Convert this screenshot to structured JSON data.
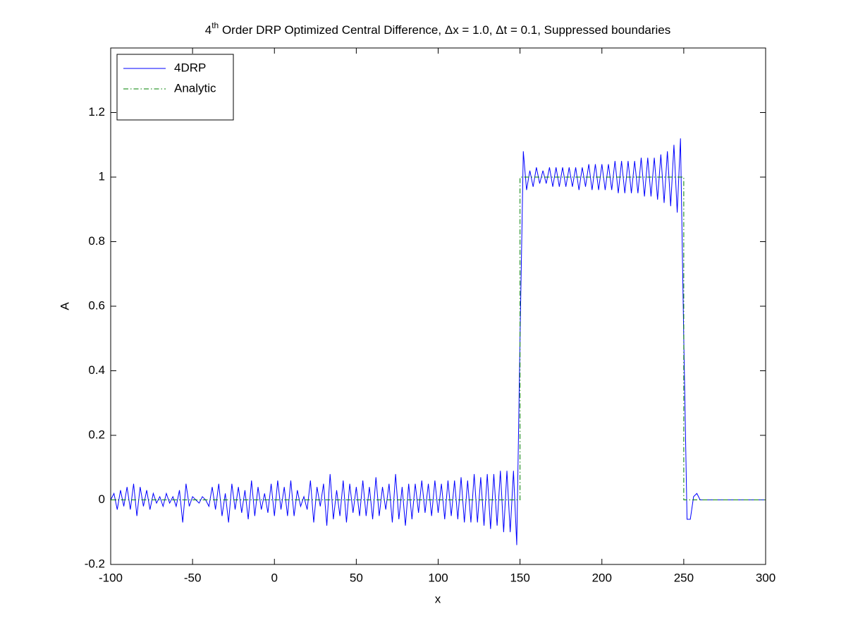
{
  "chart_data": {
    "type": "line",
    "title": [
      "4",
      "th",
      " Order DRP Optimized Central Difference, Δx = 1.0, Δt = 0.1, Suppressed boundaries"
    ],
    "xlabel": "x",
    "ylabel": "A",
    "xlim": [
      -100,
      300
    ],
    "xticks": [
      -100,
      -50,
      0,
      50,
      100,
      150,
      200,
      250,
      300
    ],
    "ylim": [
      -0.2,
      1.4
    ],
    "yticks": [
      -0.2,
      0,
      0.2,
      0.4,
      0.6,
      0.8,
      1,
      1.2
    ],
    "legend": "northwest",
    "series": [
      {
        "name": "4DRP",
        "color": "#0000ff",
        "style": "solid",
        "x": [
          -100,
          -98,
          -96,
          -94,
          -92,
          -90,
          -88,
          -86,
          -84,
          -82,
          -80,
          -78,
          -76,
          -74,
          -72,
          -70,
          -68,
          -66,
          -64,
          -62,
          -60,
          -58,
          -56,
          -54,
          -52,
          -50,
          -48,
          -46,
          -44,
          -42,
          -40,
          -38,
          -36,
          -34,
          -32,
          -30,
          -28,
          -26,
          -24,
          -22,
          -20,
          -18,
          -16,
          -14,
          -12,
          -10,
          -8,
          -6,
          -4,
          -2,
          0,
          2,
          4,
          6,
          8,
          10,
          12,
          14,
          16,
          18,
          20,
          22,
          24,
          26,
          28,
          30,
          32,
          34,
          36,
          38,
          40,
          42,
          44,
          46,
          48,
          50,
          52,
          54,
          56,
          58,
          60,
          62,
          64,
          66,
          68,
          70,
          72,
          74,
          76,
          78,
          80,
          82,
          84,
          86,
          88,
          90,
          92,
          94,
          96,
          98,
          100,
          102,
          104,
          106,
          108,
          110,
          112,
          114,
          116,
          118,
          120,
          122,
          124,
          126,
          128,
          130,
          132,
          134,
          136,
          138,
          140,
          142,
          144,
          146,
          148,
          150,
          152,
          154,
          156,
          158,
          160,
          162,
          164,
          166,
          168,
          170,
          172,
          174,
          176,
          178,
          180,
          182,
          184,
          186,
          188,
          190,
          192,
          194,
          196,
          198,
          200,
          202,
          204,
          206,
          208,
          210,
          212,
          214,
          216,
          218,
          220,
          222,
          224,
          226,
          228,
          230,
          232,
          234,
          236,
          238,
          240,
          242,
          244,
          246,
          248,
          250,
          252,
          254,
          256,
          258,
          260,
          262,
          264,
          266,
          268,
          270,
          272,
          274,
          276,
          278,
          280,
          282,
          284,
          286,
          288,
          290,
          292,
          294,
          296,
          298,
          300
        ],
        "values": [
          0,
          0.02,
          -0.03,
          0.03,
          -0.02,
          0.04,
          -0.03,
          0.05,
          -0.05,
          0.04,
          -0.02,
          0.03,
          -0.03,
          0.02,
          -0.01,
          0.01,
          -0.02,
          0.02,
          -0.01,
          0.01,
          -0.02,
          0.03,
          -0.07,
          0.05,
          -0.02,
          0.01,
          0,
          -0.01,
          0.01,
          0,
          -0.02,
          0.04,
          -0.03,
          0.05,
          -0.05,
          0.02,
          -0.07,
          0.05,
          -0.03,
          0.04,
          -0.04,
          0.03,
          -0.06,
          0.06,
          -0.05,
          0.04,
          -0.03,
          0.02,
          -0.04,
          0.05,
          -0.05,
          0.06,
          -0.03,
          0.04,
          -0.05,
          0.06,
          -0.05,
          0.03,
          -0.02,
          0.01,
          -0.03,
          0.06,
          -0.07,
          0.04,
          -0.02,
          0.05,
          -0.08,
          0.08,
          -0.06,
          0.03,
          -0.05,
          0.06,
          -0.07,
          0.05,
          -0.04,
          0.04,
          -0.05,
          0.06,
          -0.05,
          0.04,
          -0.06,
          0.07,
          -0.05,
          0.04,
          -0.03,
          0.05,
          -0.07,
          0.08,
          -0.06,
          0.04,
          -0.08,
          0.05,
          -0.06,
          0.05,
          -0.04,
          0.06,
          -0.04,
          0.05,
          -0.05,
          0.06,
          -0.04,
          0.05,
          -0.06,
          0.06,
          -0.05,
          0.06,
          -0.06,
          0.07,
          -0.07,
          0.06,
          -0.07,
          0.08,
          -0.07,
          0.07,
          -0.08,
          0.08,
          -0.09,
          0.08,
          -0.08,
          0.09,
          -0.1,
          0.09,
          -0.1,
          0.09,
          -0.14,
          0.5,
          1.08,
          0.96,
          1.02,
          0.97,
          1.03,
          0.98,
          1.02,
          0.98,
          1.03,
          0.97,
          1.03,
          0.97,
          1.03,
          0.97,
          1.03,
          0.97,
          1.03,
          0.96,
          1.03,
          0.97,
          1.04,
          0.96,
          1.04,
          0.96,
          1.04,
          0.96,
          1.04,
          0.96,
          1.05,
          0.95,
          1.05,
          0.95,
          1.05,
          0.95,
          1.05,
          0.95,
          1.06,
          0.94,
          1.06,
          0.94,
          1.06,
          0.93,
          1.07,
          0.92,
          1.08,
          0.91,
          1.1,
          0.89,
          1.12,
          0.5,
          -0.06,
          -0.06,
          0.01,
          0.02,
          0,
          0,
          0,
          0,
          0,
          0,
          0,
          0,
          0,
          0,
          0,
          0,
          0,
          0,
          0,
          0,
          0,
          0,
          0,
          0,
          0
        ]
      },
      {
        "name": "Analytic",
        "color": "#008000",
        "style": "dashdot",
        "x": [
          -100,
          150,
          150,
          250,
          250,
          300
        ],
        "values": [
          0,
          0,
          1,
          1,
          0,
          0
        ]
      }
    ]
  }
}
